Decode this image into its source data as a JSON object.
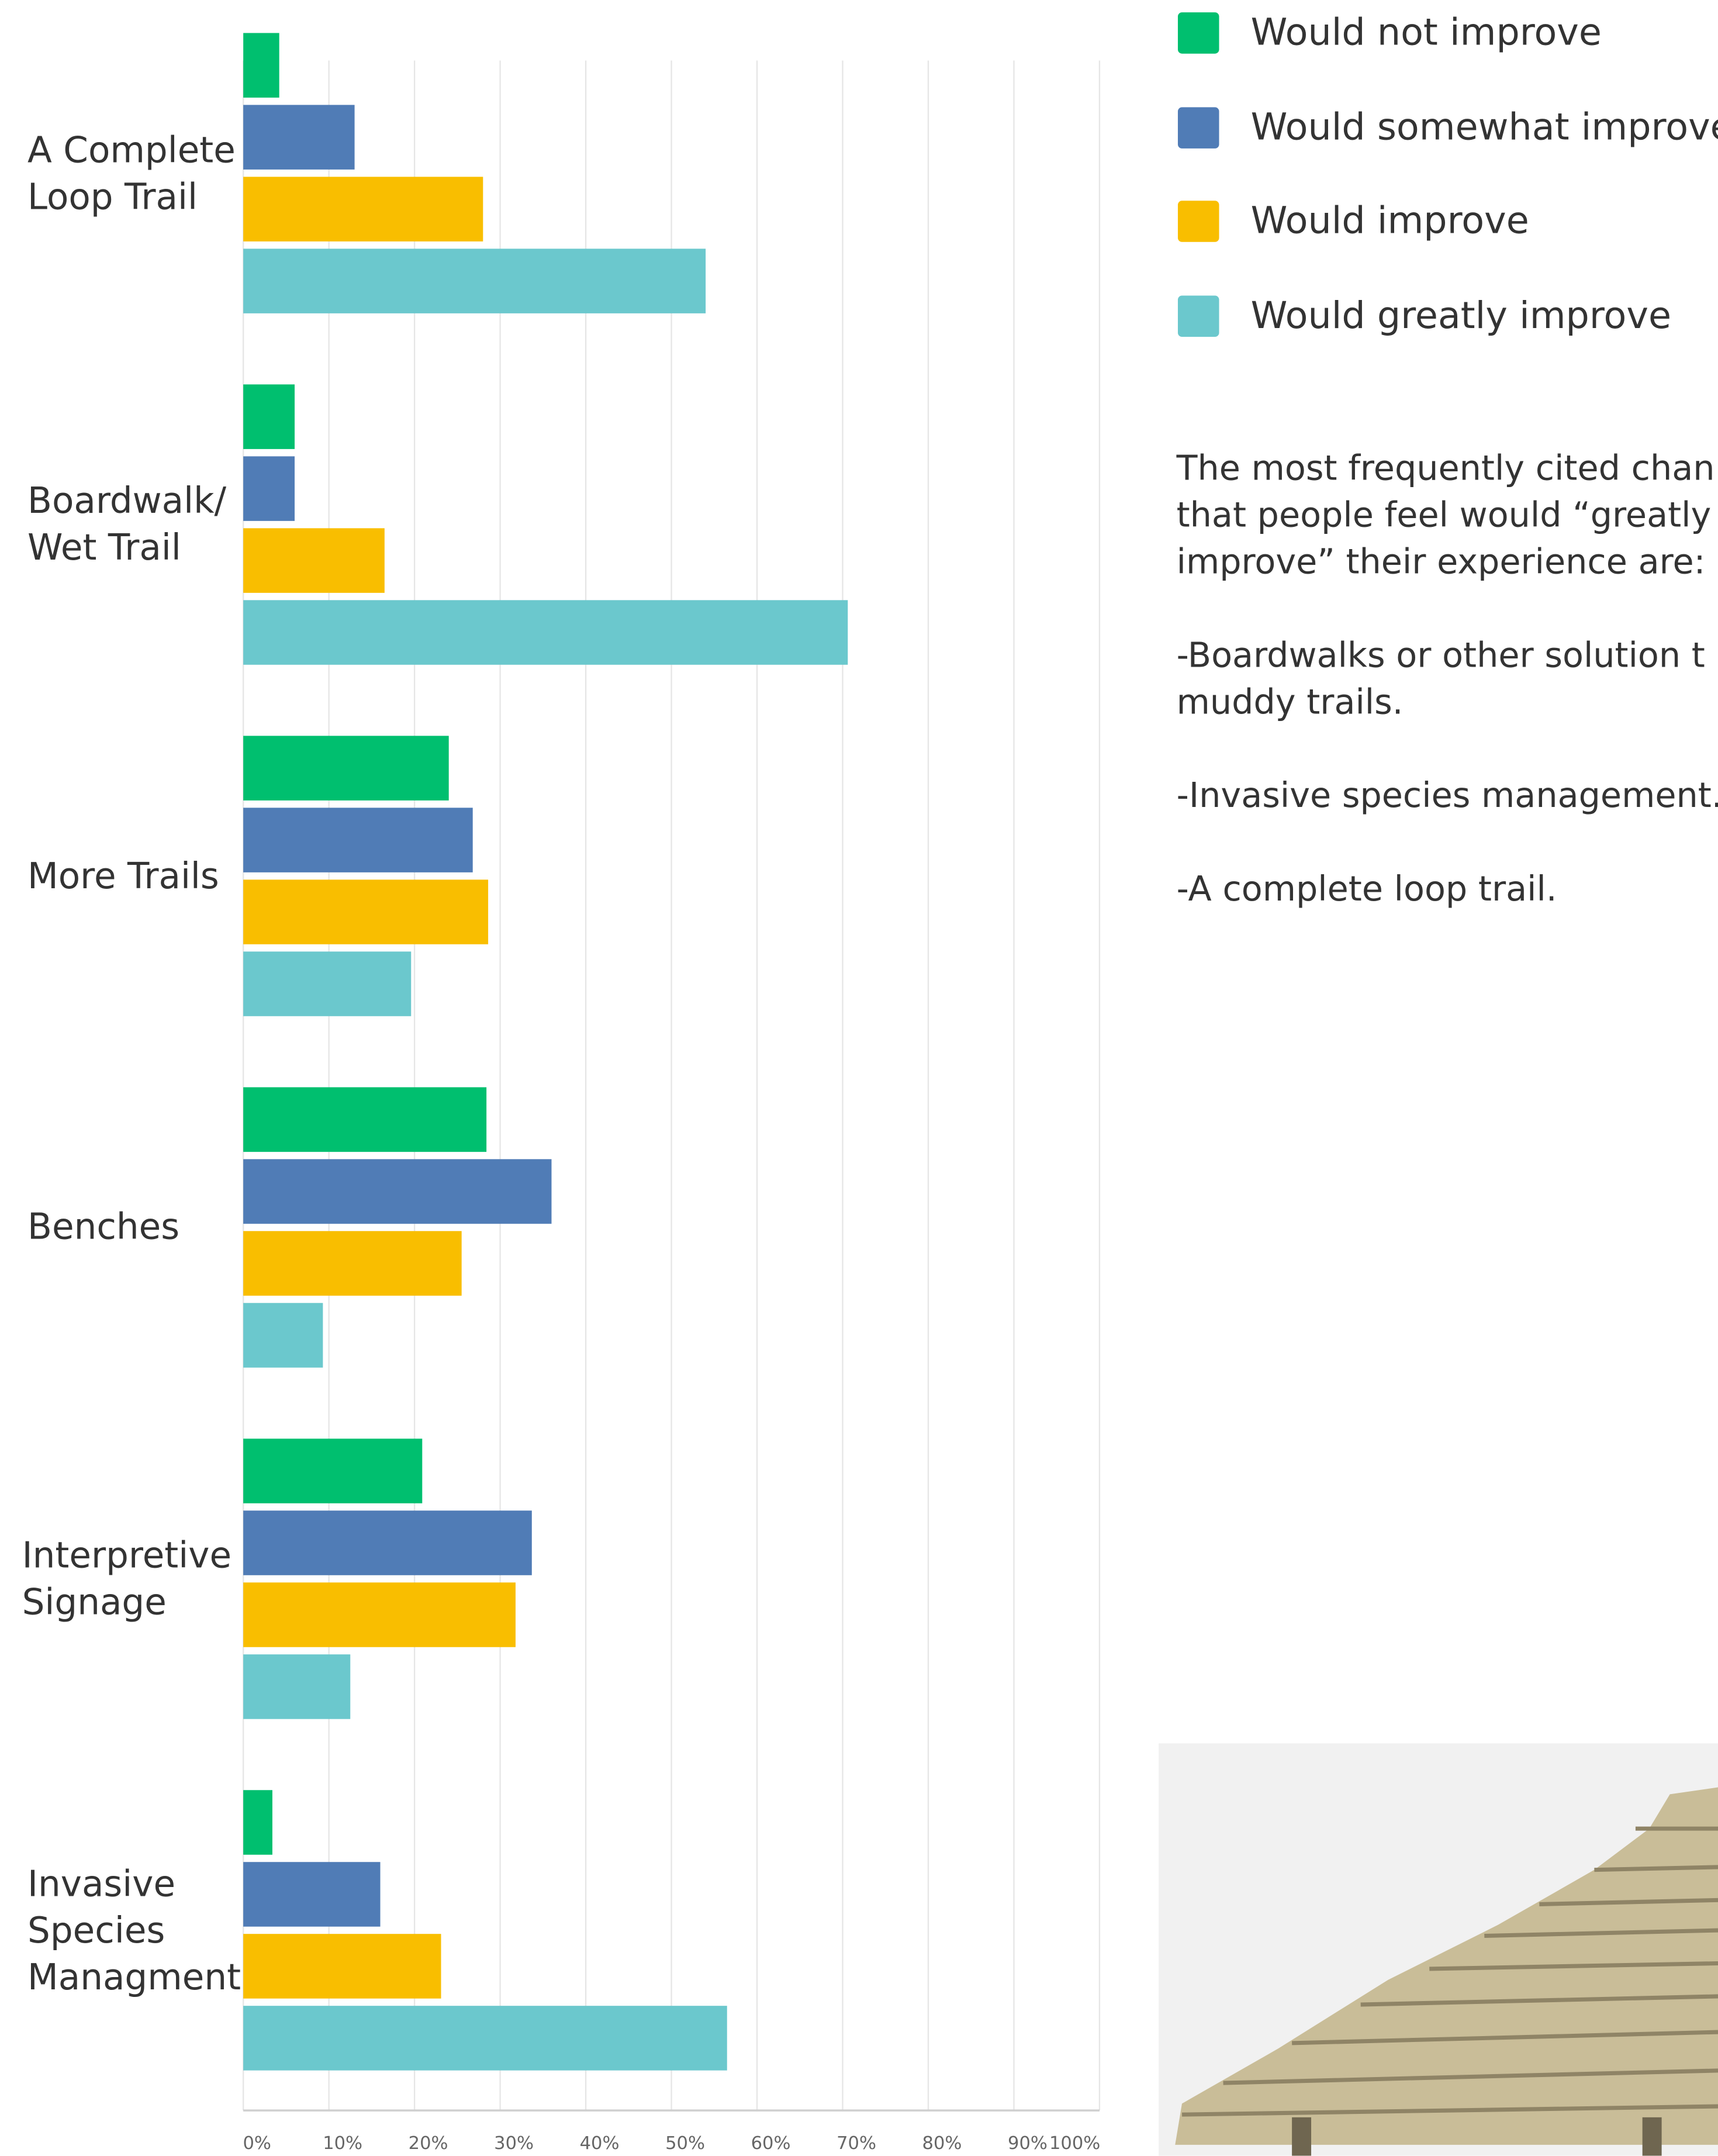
{
  "chart_data": {
    "type": "barh",
    "categories": [
      "A Complete\nLoop Trail",
      "Boardwalk/\nWet Trail",
      "More Trails",
      "Benches",
      "Interpretive\nSignage",
      "Invasive\nSpecies\nManagment"
    ],
    "series": [
      {
        "name": "Would not improve",
        "color": "#00bf6f",
        "values": [
          4.2,
          6,
          24,
          28.4,
          20.9,
          3.4
        ]
      },
      {
        "name": "Would somewhat improve",
        "color": "#507cb6",
        "values": [
          13,
          6,
          26.8,
          36,
          33.7,
          16
        ]
      },
      {
        "name": "Would improve",
        "color": "#f9be00",
        "values": [
          28,
          16.5,
          28.6,
          25.5,
          31.8,
          23.1
        ]
      },
      {
        "name": "Would greatly improve",
        "color": "#6bc8cd",
        "values": [
          54,
          70.6,
          19.6,
          9.3,
          12.5,
          56.5
        ]
      }
    ],
    "xlim": [
      0,
      100
    ],
    "xticks": [
      {
        "value": 0,
        "label": "0%"
      },
      {
        "value": 10,
        "label": "10%"
      },
      {
        "value": 20,
        "label": "20%"
      },
      {
        "value": 30,
        "label": "30%"
      },
      {
        "value": 40,
        "label": "40%"
      },
      {
        "value": 50,
        "label": "50%"
      },
      {
        "value": 60,
        "label": "60%"
      },
      {
        "value": 70,
        "label": "70%"
      },
      {
        "value": 80,
        "label": "80%"
      },
      {
        "value": 90,
        "label": "90%"
      },
      {
        "value": 100,
        "label": "100%"
      }
    ],
    "grid": true
  },
  "notes": {
    "lines": [
      "The most frequently cited chan",
      "that people feel would “greatly",
      "improve” their experience are:",
      "",
      "-Boardwalks or other solution t",
      "muddy trails.",
      "",
      "-Invasive species management.",
      "",
      "-A complete loop trail."
    ]
  }
}
